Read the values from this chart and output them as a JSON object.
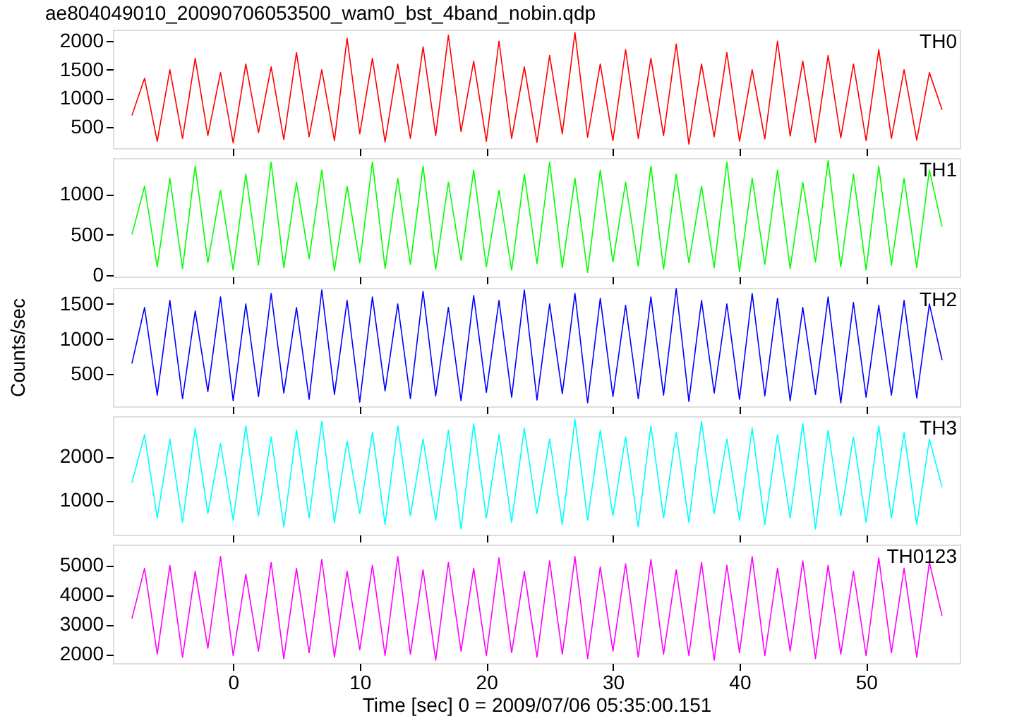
{
  "chart_data": [
    {
      "type": "line",
      "title": "ae804049010_20090706053500_wam0_bst_4band_nobin.qdp",
      "x": [
        -8,
        -7,
        -6,
        -5,
        -4,
        -3,
        -2,
        -1,
        0,
        1,
        2,
        3,
        4,
        5,
        6,
        7,
        8,
        9,
        10,
        11,
        12,
        13,
        14,
        15,
        16,
        17,
        18,
        19,
        20,
        21,
        22,
        23,
        24,
        25,
        26,
        27,
        28,
        29,
        30,
        31,
        32,
        33,
        34,
        35,
        36,
        37,
        38,
        39,
        40,
        41,
        42,
        43,
        44,
        45,
        46,
        47,
        48,
        49,
        50,
        51,
        52,
        53,
        54,
        55,
        56
      ],
      "series": [
        {
          "name": "TH0",
          "color": "#ff0000",
          "values": [
            700,
            1350,
            250,
            1500,
            300,
            1700,
            350,
            1450,
            220,
            1600,
            400,
            1550,
            280,
            1800,
            330,
            1500,
            260,
            2050,
            380,
            1700,
            240,
            1600,
            300,
            1900,
            350,
            2100,
            420,
            1650,
            250,
            2000,
            300,
            1550,
            230,
            1750,
            380,
            2150,
            320,
            1600,
            260,
            1850,
            300,
            1700,
            350,
            1950,
            200,
            1600,
            330,
            1800,
            250,
            1500,
            290,
            2000,
            340,
            1650,
            230,
            1750,
            310,
            1600,
            260,
            1850,
            300,
            1500,
            270,
            1450,
            800
          ]
        }
      ],
      "xlim": [
        -9.5,
        57.4
      ],
      "xticks": [
        0,
        10,
        20,
        30,
        40,
        50
      ],
      "ylim": [
        130,
        2200
      ],
      "yticks": [
        500,
        1000,
        1500,
        2000
      ],
      "tick_labels": "y"
    },
    {
      "type": "line",
      "x": [
        -8,
        -7,
        -6,
        -5,
        -4,
        -3,
        -2,
        -1,
        0,
        1,
        2,
        3,
        4,
        5,
        6,
        7,
        8,
        9,
        10,
        11,
        12,
        13,
        14,
        15,
        16,
        17,
        18,
        19,
        20,
        21,
        22,
        23,
        24,
        25,
        26,
        27,
        28,
        29,
        30,
        31,
        32,
        33,
        34,
        35,
        36,
        37,
        38,
        39,
        40,
        41,
        42,
        43,
        44,
        45,
        46,
        47,
        48,
        49,
        50,
        51,
        52,
        53,
        54,
        55,
        56
      ],
      "series": [
        {
          "name": "TH1",
          "color": "#00ff00",
          "values": [
            500,
            1100,
            100,
            1200,
            80,
            1350,
            150,
            1050,
            60,
            1250,
            120,
            1400,
            90,
            1150,
            200,
            1300,
            50,
            1100,
            150,
            1400,
            80,
            1200,
            130,
            1350,
            70,
            1150,
            180,
            1300,
            100,
            1050,
            60,
            1250,
            140,
            1400,
            90,
            1200,
            30,
            1300,
            160,
            1150,
            110,
            1350,
            70,
            1250,
            150,
            1100,
            90,
            1400,
            40,
            1200,
            130,
            1300,
            80,
            1150,
            160,
            1420,
            100,
            1250,
            60,
            1350,
            120,
            1200,
            90,
            1300,
            600
          ]
        }
      ],
      "xlim": [
        -9.5,
        57.4
      ],
      "xticks": [
        0,
        10,
        20,
        30,
        40,
        50
      ],
      "ylim": [
        -20,
        1450
      ],
      "yticks": [
        0,
        500,
        1000
      ],
      "tick_labels": "y"
    },
    {
      "type": "line",
      "ylabel": "Counts/sec",
      "x": [
        -8,
        -7,
        -6,
        -5,
        -4,
        -3,
        -2,
        -1,
        0,
        1,
        2,
        3,
        4,
        5,
        6,
        7,
        8,
        9,
        10,
        11,
        12,
        13,
        14,
        15,
        16,
        17,
        18,
        19,
        20,
        21,
        22,
        23,
        24,
        25,
        26,
        27,
        28,
        29,
        30,
        31,
        32,
        33,
        34,
        35,
        36,
        37,
        38,
        39,
        40,
        41,
        42,
        43,
        44,
        45,
        46,
        47,
        48,
        49,
        50,
        51,
        52,
        53,
        54,
        55,
        56
      ],
      "series": [
        {
          "name": "TH2",
          "color": "#0000ff",
          "values": [
            650,
            1450,
            200,
            1550,
            150,
            1400,
            250,
            1600,
            120,
            1500,
            180,
            1650,
            230,
            1450,
            140,
            1700,
            210,
            1550,
            100,
            1600,
            260,
            1500,
            150,
            1680,
            190,
            1450,
            120,
            1620,
            240,
            1550,
            170,
            1700,
            130,
            1500,
            220,
            1650,
            90,
            1580,
            180,
            1480,
            150,
            1600,
            200,
            1720,
            110,
            1550,
            230,
            1500,
            140,
            1650,
            190,
            1580,
            120,
            1450,
            210,
            1600,
            90,
            1520,
            170,
            1480,
            200,
            1550,
            160,
            1500,
            700
          ]
        }
      ],
      "xlim": [
        -9.5,
        57.4
      ],
      "xticks": [
        0,
        10,
        20,
        30,
        40,
        50
      ],
      "ylim": [
        40,
        1730
      ],
      "yticks": [
        500,
        1000,
        1500
      ],
      "tick_labels": "y"
    },
    {
      "type": "line",
      "x": [
        -8,
        -7,
        -6,
        -5,
        -4,
        -3,
        -2,
        -1,
        0,
        1,
        2,
        3,
        4,
        5,
        6,
        7,
        8,
        9,
        10,
        11,
        12,
        13,
        14,
        15,
        16,
        17,
        18,
        19,
        20,
        21,
        22,
        23,
        24,
        25,
        26,
        27,
        28,
        29,
        30,
        31,
        32,
        33,
        34,
        35,
        36,
        37,
        38,
        39,
        40,
        41,
        42,
        43,
        44,
        45,
        46,
        47,
        48,
        49,
        50,
        51,
        52,
        53,
        54,
        55,
        56
      ],
      "series": [
        {
          "name": "TH3",
          "color": "#00ffff",
          "values": [
            1400,
            2500,
            600,
            2400,
            500,
            2650,
            700,
            2300,
            550,
            2700,
            650,
            2450,
            400,
            2600,
            600,
            2800,
            500,
            2350,
            700,
            2550,
            450,
            2700,
            650,
            2400,
            550,
            2600,
            350,
            2750,
            600,
            2500,
            500,
            2650,
            700,
            2400,
            450,
            2850,
            550,
            2600,
            650,
            2450,
            400,
            2700,
            600,
            2550,
            500,
            2800,
            700,
            2400,
            550,
            2650,
            450,
            2500,
            600,
            2750,
            350,
            2600,
            650,
            2450,
            500,
            2700,
            600,
            2550,
            450,
            2400,
            1300
          ]
        }
      ],
      "xlim": [
        -9.5,
        57.4
      ],
      "xticks": [
        0,
        10,
        20,
        30,
        40,
        50
      ],
      "ylim": [
        220,
        2920
      ],
      "yticks": [
        1000,
        2000
      ],
      "tick_labels": "y"
    },
    {
      "type": "line",
      "xlabel": "Time [sec] 0 = 2009/07/06 05:35:00.151",
      "x": [
        -8,
        -7,
        -6,
        -5,
        -4,
        -3,
        -2,
        -1,
        0,
        1,
        2,
        3,
        4,
        5,
        6,
        7,
        8,
        9,
        10,
        11,
        12,
        13,
        14,
        15,
        16,
        17,
        18,
        19,
        20,
        21,
        22,
        23,
        24,
        25,
        26,
        27,
        28,
        29,
        30,
        31,
        32,
        33,
        34,
        35,
        36,
        37,
        38,
        39,
        40,
        41,
        42,
        43,
        44,
        45,
        46,
        47,
        48,
        49,
        50,
        51,
        52,
        53,
        54,
        55,
        56
      ],
      "series": [
        {
          "name": "TH0123",
          "color": "#ff00ff",
          "values": [
            3200,
            4900,
            2000,
            5000,
            1900,
            4800,
            2200,
            5300,
            1950,
            4700,
            2100,
            5100,
            1850,
            4900,
            2050,
            5200,
            1900,
            4800,
            2150,
            5000,
            1950,
            5300,
            2000,
            4850,
            1800,
            5100,
            2100,
            4900,
            1950,
            5250,
            2050,
            4800,
            1900,
            5150,
            2000,
            5300,
            1850,
            4950,
            2100,
            5050,
            1900,
            5200,
            2000,
            4850,
            1950,
            5100,
            1800,
            5000,
            2050,
            5300,
            1950,
            4900,
            2100,
            5150,
            1850,
            5000,
            2000,
            4800,
            1950,
            5250,
            2050,
            4900,
            1900,
            5100,
            3300
          ]
        }
      ],
      "xlim": [
        -9.5,
        57.4
      ],
      "xticks": [
        0,
        10,
        20,
        30,
        40,
        50
      ],
      "ylim": [
        1700,
        5700
      ],
      "yticks": [
        2000,
        3000,
        4000,
        5000
      ]
    }
  ]
}
